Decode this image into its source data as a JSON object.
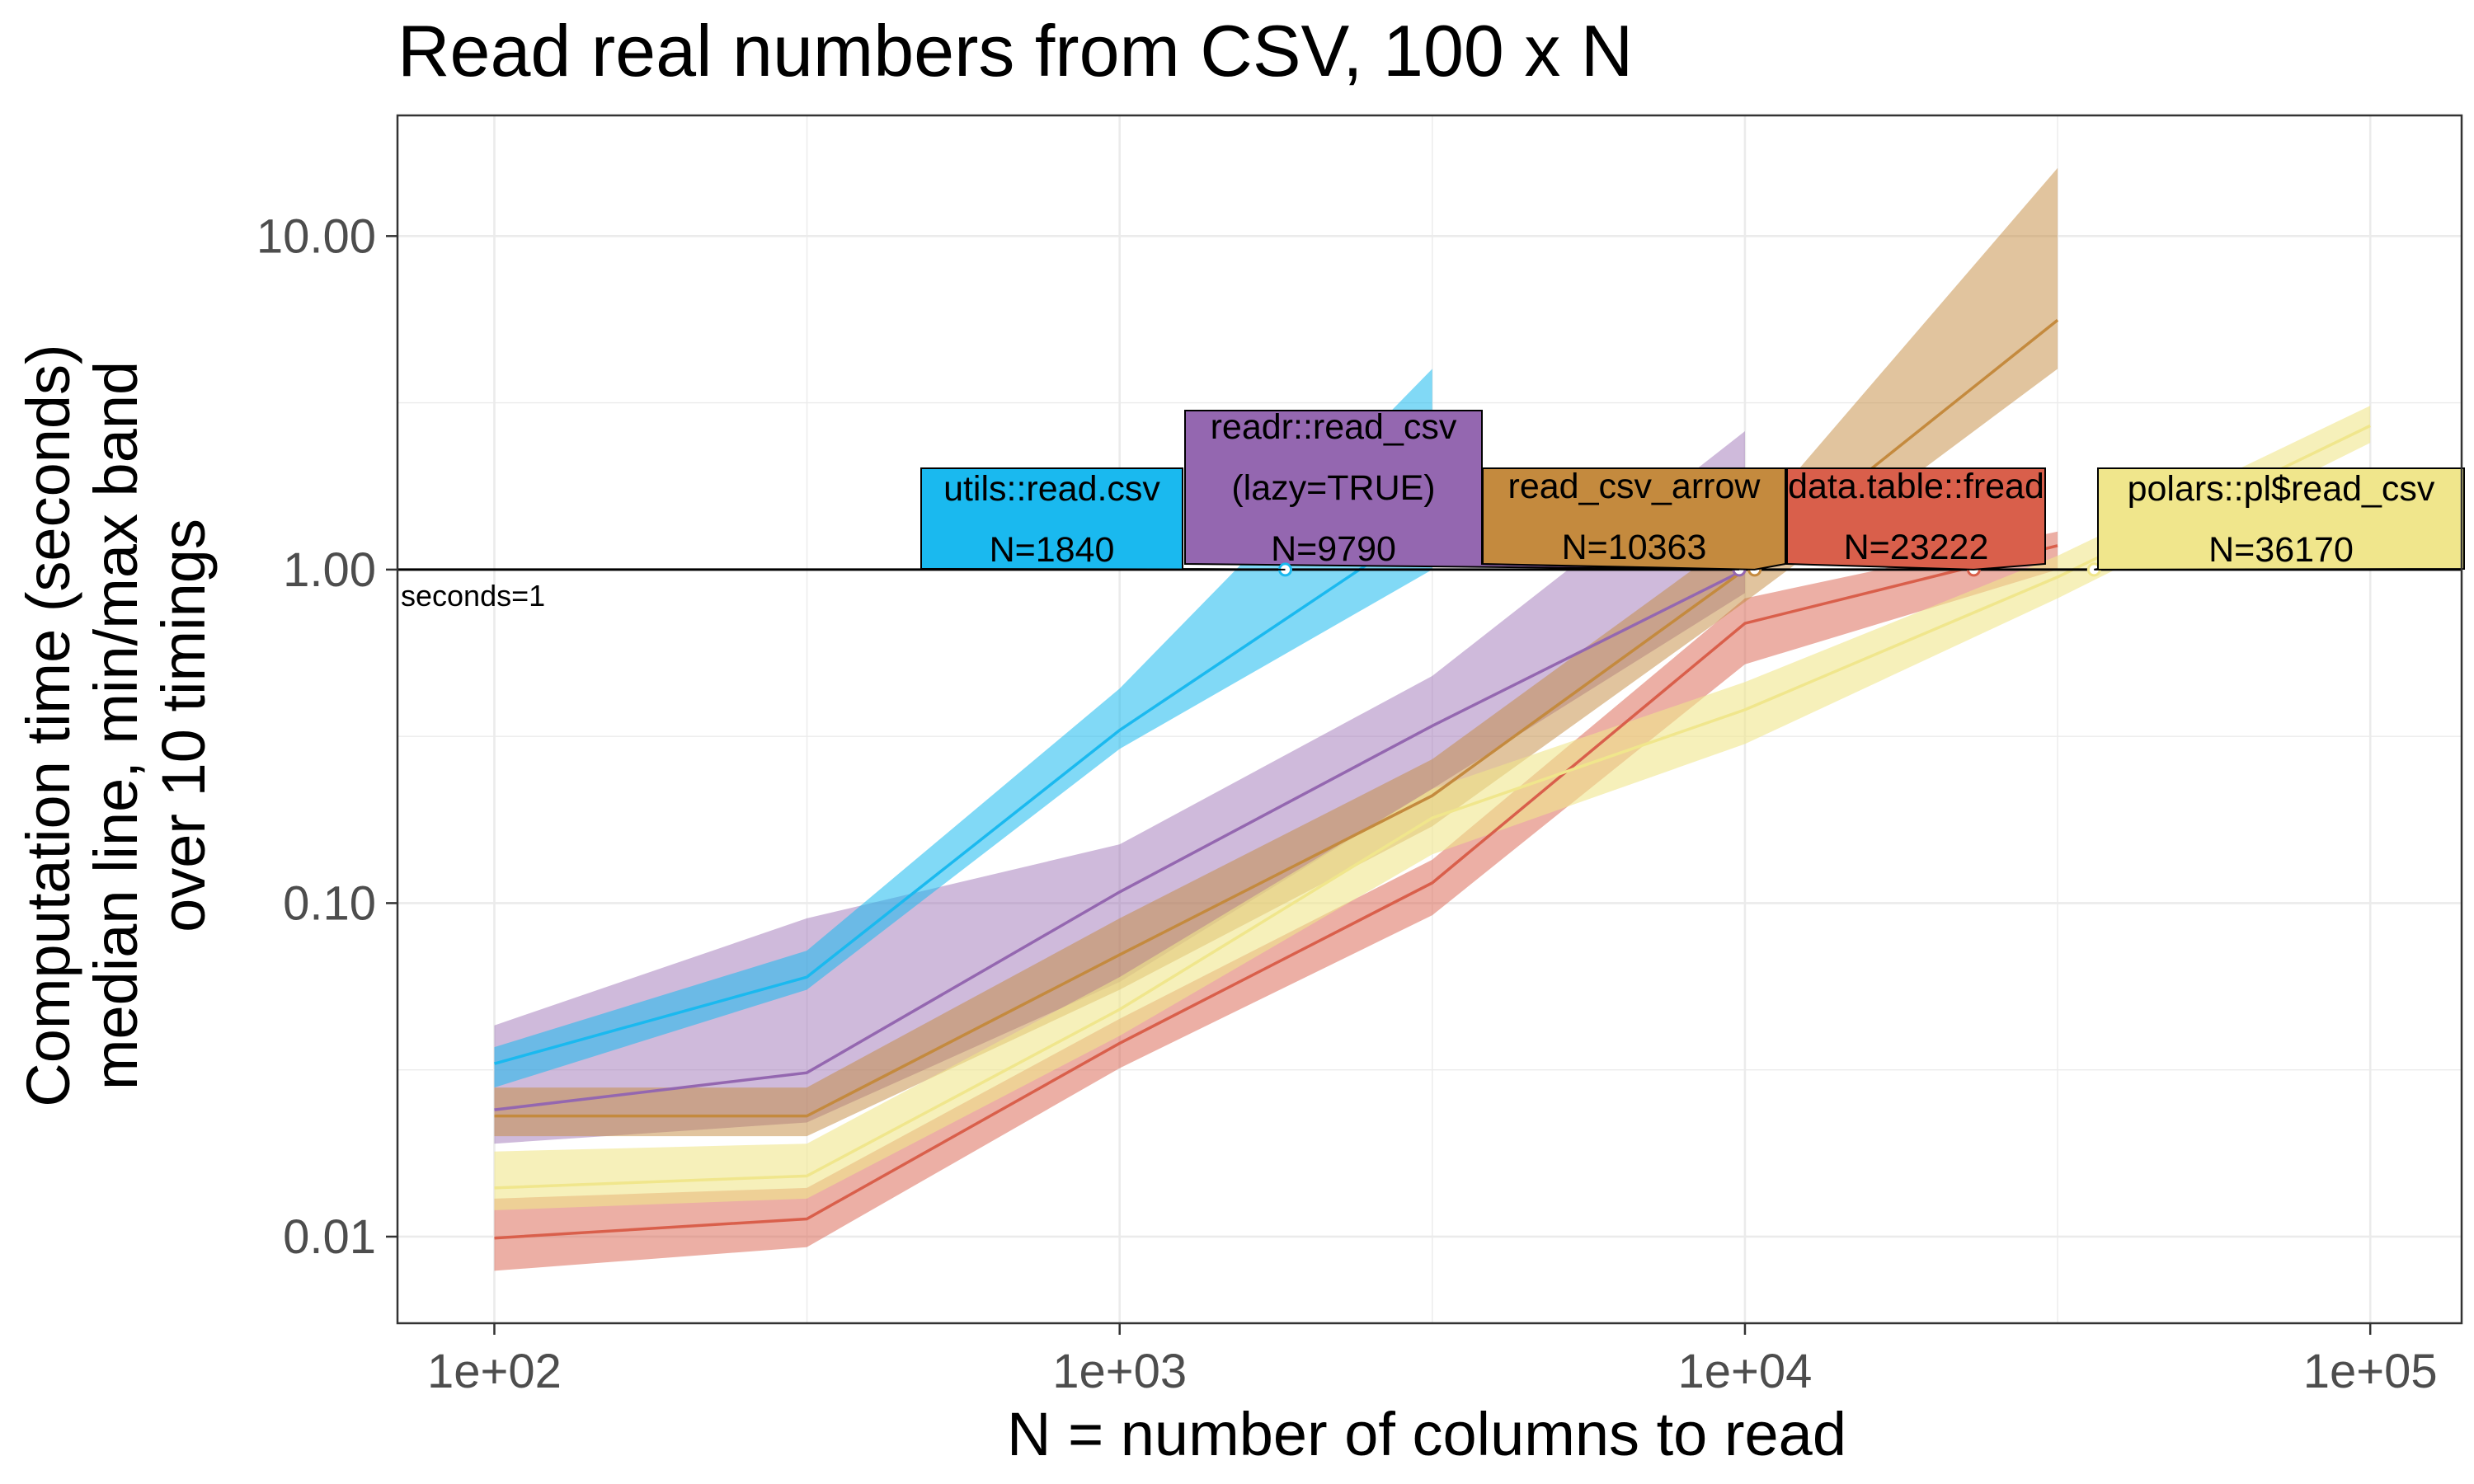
{
  "chart_data": {
    "type": "line",
    "title": "Read real numbers from CSV, 100 x N",
    "xlabel": "N = number of columns to read",
    "ylabel_lines": [
      "Computation time (seconds)",
      "median line, min/max band",
      "over 10 timings"
    ],
    "x_scale": "log10",
    "y_scale": "log10",
    "xlim": [
      70,
      140000
    ],
    "ylim": [
      0.0055,
      23
    ],
    "x_ticks": [
      {
        "value": 100,
        "label": "1e+02"
      },
      {
        "value": 1000,
        "label": "1e+03"
      },
      {
        "value": 10000,
        "label": "1e+04"
      },
      {
        "value": 100000,
        "label": "1e+05"
      }
    ],
    "y_ticks": [
      {
        "value": 0.01,
        "label": "0.01"
      },
      {
        "value": 0.1,
        "label": "0.10"
      },
      {
        "value": 1,
        "label": "1.00"
      },
      {
        "value": 10,
        "label": "10.00"
      }
    ],
    "grid": true,
    "reference_line": {
      "y": 1,
      "label": "seconds=1"
    },
    "series": [
      {
        "name": "readr::read_csv (lazy=TRUE)",
        "label_lines": [
          "readr::read_csv",
          "(lazy=TRUE)",
          "N=9790"
        ],
        "color": "#9467b0",
        "band_opacity": 0.45,
        "x": [
          100,
          316,
          1000,
          3162,
          10000
        ],
        "median": [
          0.024,
          0.031,
          0.108,
          0.34,
          1.0
        ],
        "min": [
          0.019,
          0.022,
          0.058,
          0.22,
          0.85
        ],
        "max": [
          0.043,
          0.09,
          0.15,
          0.48,
          2.6
        ],
        "crossing_N": 9790
      },
      {
        "name": "data.table::fread",
        "label_lines": [
          "data.table::fread",
          "N=23222"
        ],
        "color": "#d95f4b",
        "band_opacity": 0.5,
        "x": [
          100,
          316,
          1000,
          3162,
          10000,
          31623
        ],
        "median": [
          0.0099,
          0.0113,
          0.038,
          0.115,
          0.69,
          1.18
        ],
        "min": [
          0.0079,
          0.0093,
          0.032,
          0.092,
          0.52,
          1.0
        ],
        "max": [
          0.013,
          0.014,
          0.045,
          0.135,
          0.82,
          1.3
        ],
        "crossing_N": 23222
      },
      {
        "name": "read_csv_arrow",
        "label_lines": [
          "read_csv_arrow",
          "N=10363"
        ],
        "color": "#c48a3e",
        "band_opacity": 0.5,
        "x": [
          100,
          316,
          1000,
          3162,
          10000,
          31623
        ],
        "median": [
          0.023,
          0.023,
          0.07,
          0.21,
          1.0,
          5.6
        ],
        "min": [
          0.02,
          0.02,
          0.055,
          0.17,
          0.8,
          4.0
        ],
        "max": [
          0.028,
          0.028,
          0.09,
          0.27,
          1.3,
          16.0
        ],
        "crossing_N": 10363
      },
      {
        "name": "polars::pl$read_csv",
        "label_lines": [
          "polars::pl$read_csv",
          "N=36170"
        ],
        "color": "#f0e68c",
        "band_opacity": 0.6,
        "x": [
          100,
          316,
          1000,
          3162,
          10000,
          31623,
          100000
        ],
        "median": [
          0.014,
          0.0152,
          0.048,
          0.18,
          0.38,
          0.95,
          2.7
        ],
        "min": [
          0.012,
          0.013,
          0.04,
          0.14,
          0.3,
          0.82,
          2.4
        ],
        "max": [
          0.018,
          0.019,
          0.06,
          0.22,
          0.46,
          1.1,
          3.1
        ],
        "crossing_N": 36170
      },
      {
        "name": "utils::read.csv",
        "label_lines": [
          "utils::read.csv",
          "N=1840"
        ],
        "color": "#1ab9ef",
        "band_opacity": 0.55,
        "x": [
          100,
          316,
          1000,
          3162
        ],
        "median": [
          0.033,
          0.06,
          0.33,
          1.4
        ],
        "min": [
          0.028,
          0.055,
          0.29,
          1.0
        ],
        "max": [
          0.037,
          0.072,
          0.44,
          4.0
        ],
        "crossing_N": 1840
      }
    ]
  }
}
